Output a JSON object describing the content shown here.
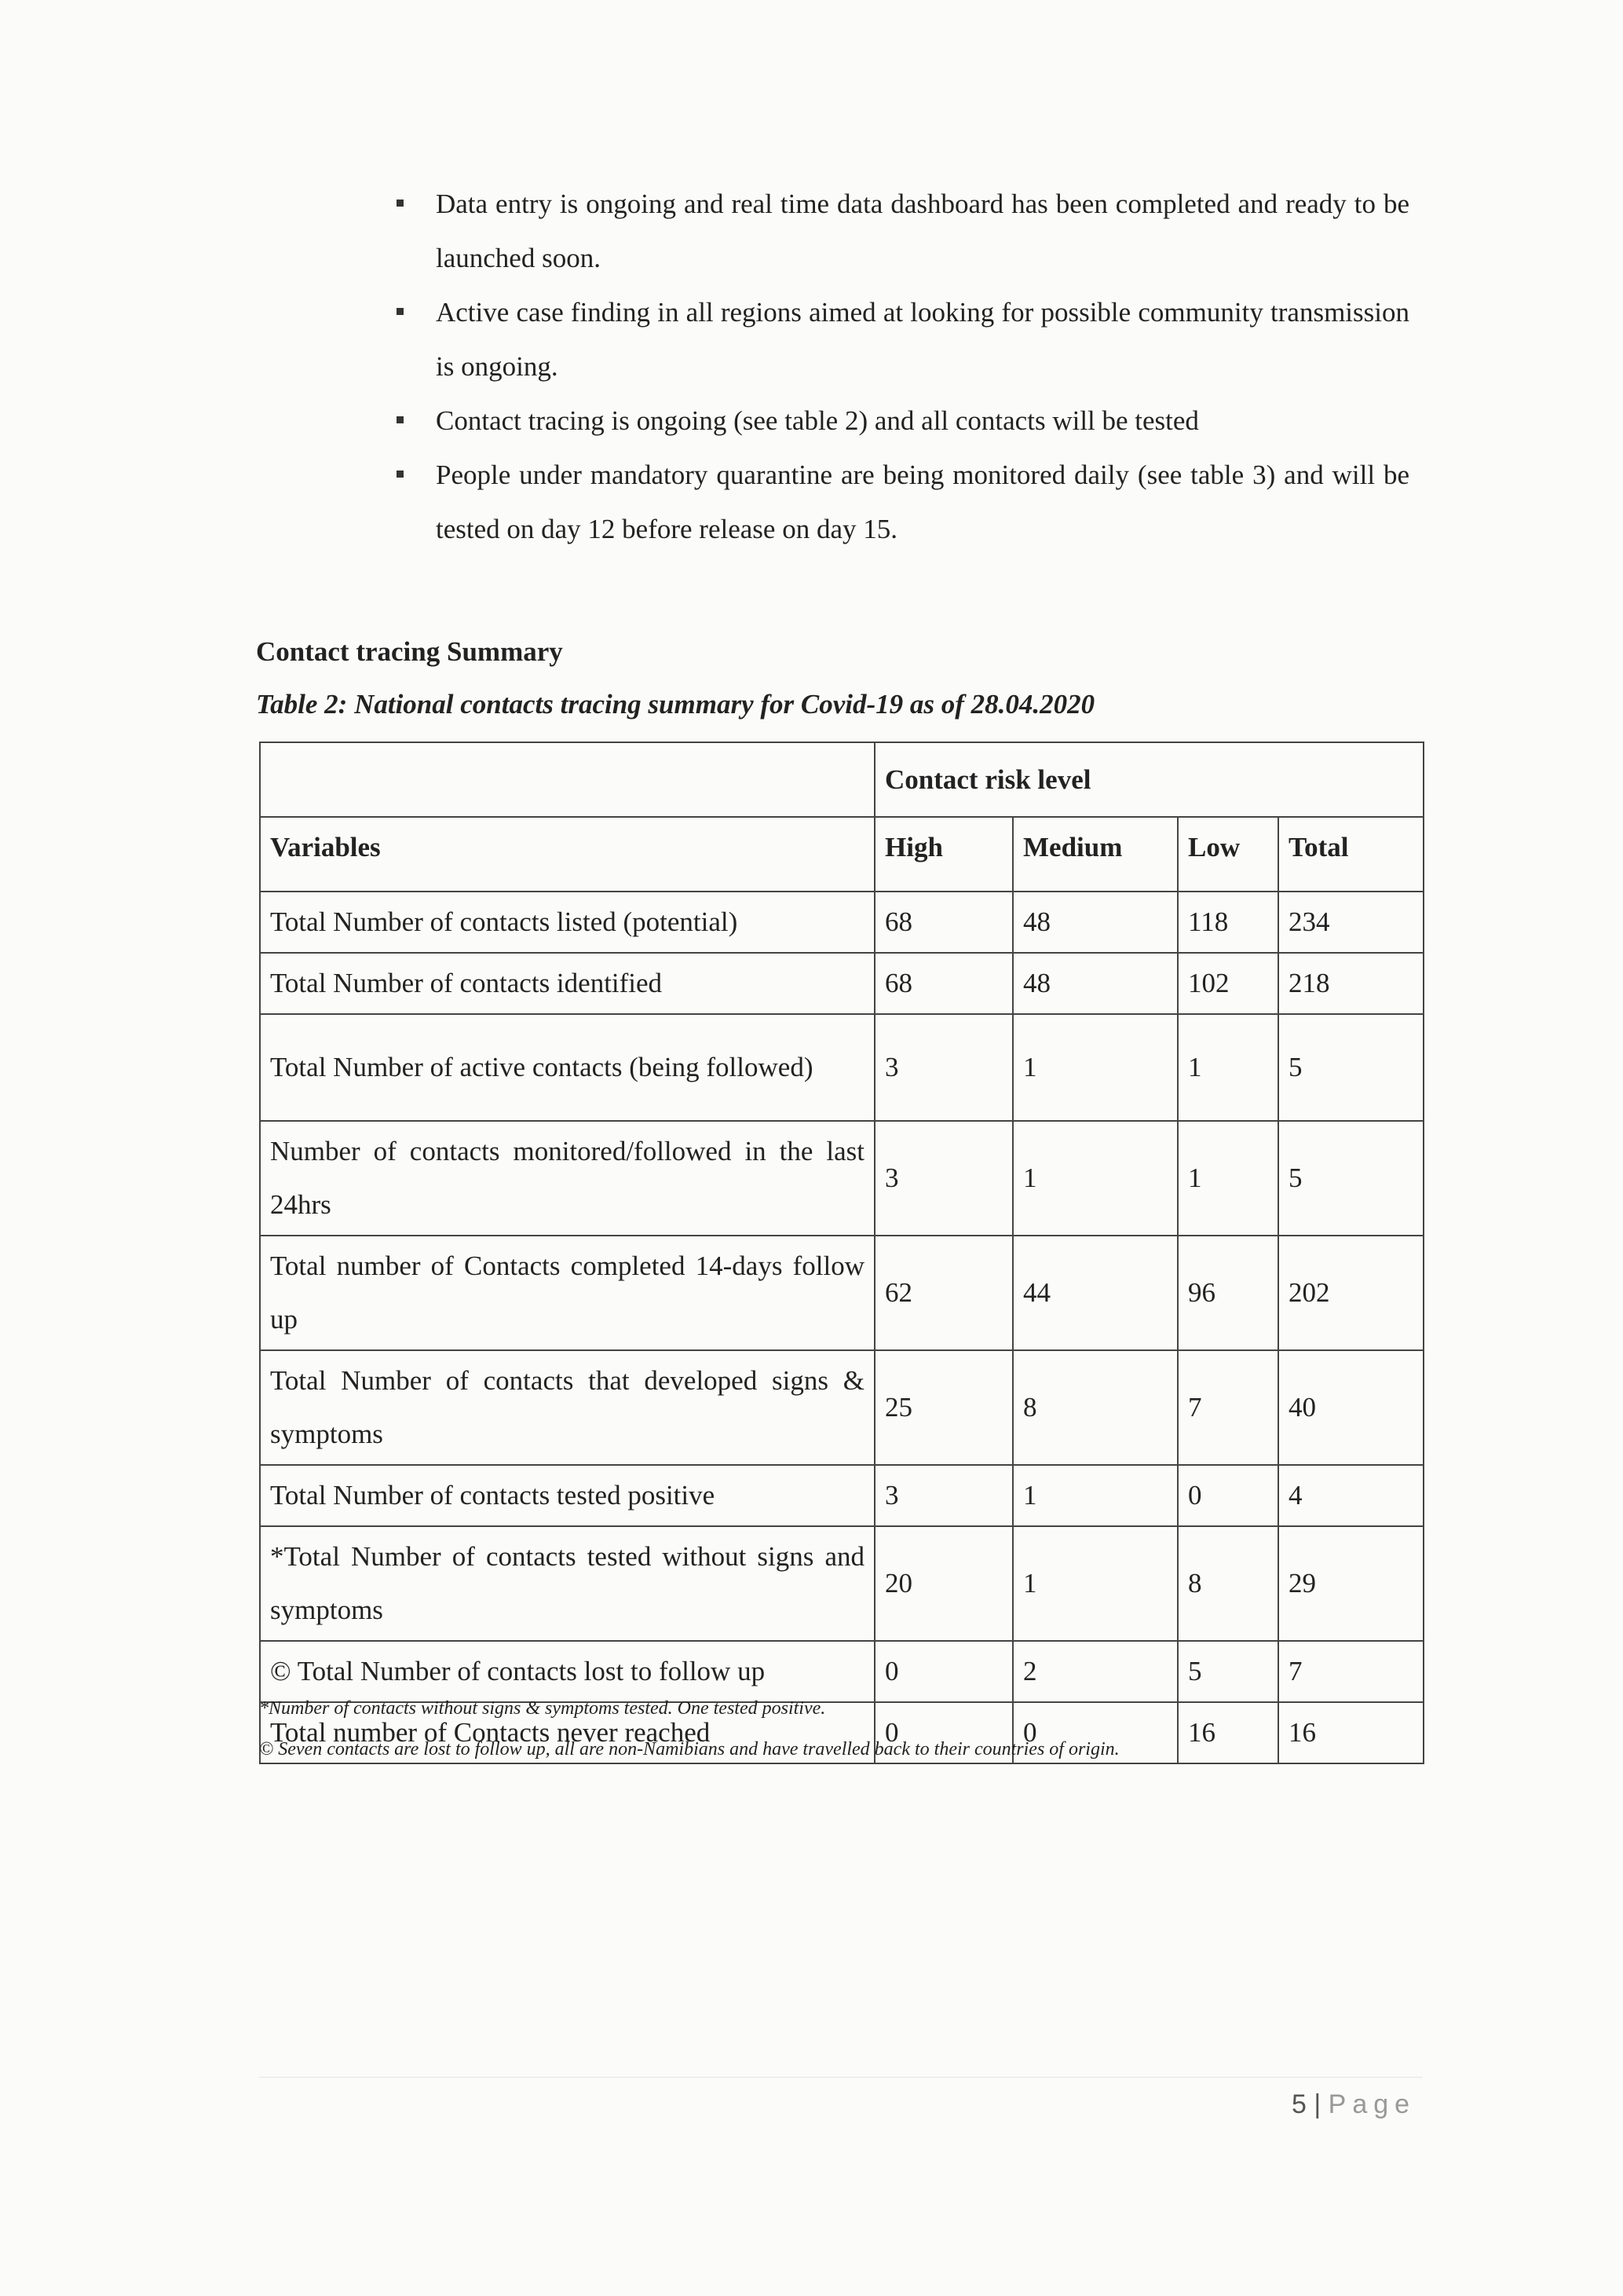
{
  "bullets": [
    "Data entry is ongoing and real time data dashboard has been completed and ready to be launched soon.",
    "Active case finding in all regions aimed at looking for possible community transmission is ongoing.",
    "Contact tracing is ongoing (see table 2) and all contacts will be tested",
    "People under mandatory quarantine are being monitored daily (see table 3) and will be tested on day 12 before release on day 15."
  ],
  "section_heading": "Contact tracing Summary",
  "table_caption": "Table 2: National contacts tracing summary for Covid-19 as of 28.04.2020",
  "table": {
    "group_header": "Contact risk level",
    "headers": [
      "Variables",
      "High",
      "Medium",
      "Low",
      "Total"
    ],
    "rows": [
      [
        "Total Number of contacts listed (potential)",
        "68",
        "48",
        "118",
        "234"
      ],
      [
        "Total Number of contacts identified",
        "68",
        "48",
        "102",
        "218"
      ],
      [
        "Total Number of active contacts (being followed)",
        "3",
        "1",
        "1",
        "5"
      ],
      [
        "Number of contacts monitored/followed in the last 24hrs",
        "3",
        "1",
        "1",
        "5"
      ],
      [
        "Total number of Contacts completed 14-days follow up",
        "62",
        "44",
        "96",
        "202"
      ],
      [
        "Total Number of contacts that developed signs & symptoms",
        "25",
        "8",
        "7",
        "40"
      ],
      [
        "Total Number of contacts tested positive",
        "3",
        "1",
        "0",
        "4"
      ],
      [
        "*Total Number of contacts tested without signs and symptoms",
        "20",
        "1",
        "8",
        "29"
      ],
      [
        "© Total Number of contacts lost to follow up",
        "0",
        "2",
        "5",
        "7"
      ],
      [
        "Total number of Contacts never reached",
        "0",
        "0",
        "16",
        "16"
      ]
    ]
  },
  "footnotes": [
    "*Number of contacts without signs & symptoms tested. One tested positive.",
    "© Seven contacts are lost to follow up, all are non-Namibians and have travelled back to their countries of origin."
  ],
  "page": {
    "number": "5",
    "separator": " | ",
    "label": "Page"
  }
}
